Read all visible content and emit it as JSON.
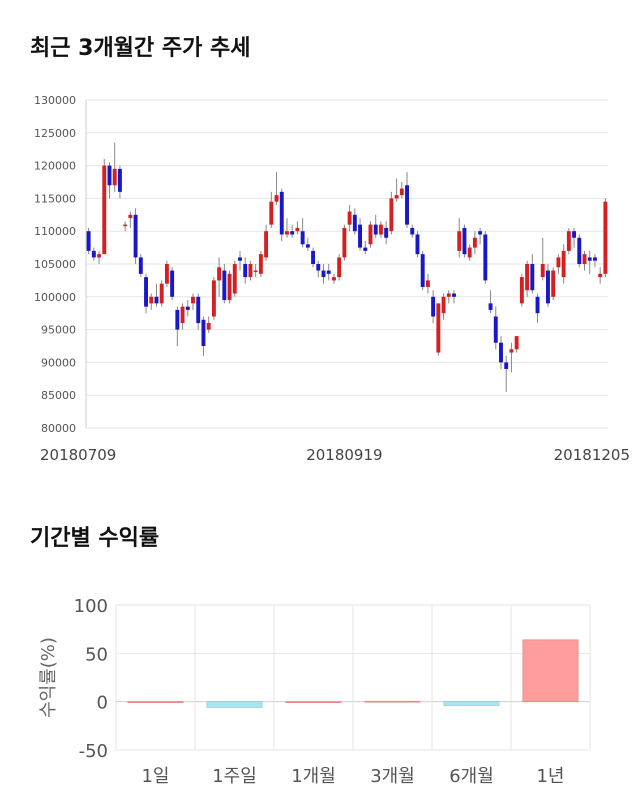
{
  "sections": {
    "stock_title": "최근 3개월간 주가 추세",
    "returns_title": "기간별 수익률"
  },
  "colors": {
    "up": "#d42020",
    "down": "#1818c8",
    "return_pos": "#ff9c9c",
    "return_neg": "#a8e4f0",
    "grid": "#e6e6e6"
  },
  "chart_data": [
    {
      "type": "candlestick",
      "ylim": [
        80000,
        130000
      ],
      "yticks": [
        80000,
        85000,
        90000,
        95000,
        100000,
        105000,
        110000,
        115000,
        120000,
        125000,
        130000
      ],
      "xticks": [
        {
          "index": 0,
          "label": "20180709"
        },
        {
          "index": 49,
          "label": "20180919"
        },
        {
          "index": 100,
          "label": "20181205"
        }
      ],
      "candles": [
        [
          110000,
          110500,
          106500,
          107000
        ],
        [
          107000,
          107500,
          105500,
          106000
        ],
        [
          106000,
          107000,
          105000,
          106500
        ],
        [
          106500,
          121000,
          106500,
          120000
        ],
        [
          120000,
          120500,
          115000,
          117000
        ],
        [
          117000,
          123500,
          116000,
          119500
        ],
        [
          119500,
          120000,
          115000,
          116000
        ],
        [
          111000,
          111500,
          110000,
          111000
        ],
        [
          112000,
          113000,
          110500,
          112500
        ],
        [
          112500,
          113500,
          105000,
          106000
        ],
        [
          106000,
          106500,
          103000,
          103500
        ],
        [
          103000,
          103500,
          97500,
          98500
        ],
        [
          99000,
          100500,
          98000,
          100000
        ],
        [
          100000,
          102000,
          98500,
          99000
        ],
        [
          99000,
          102500,
          98500,
          102000
        ],
        [
          102000,
          105500,
          101500,
          105000
        ],
        [
          104000,
          104500,
          99500,
          100000
        ],
        [
          98000,
          98500,
          92500,
          95000
        ],
        [
          96000,
          99000,
          95000,
          98500
        ],
        [
          98500,
          99500,
          97000,
          98000
        ],
        [
          99000,
          100500,
          98000,
          100000
        ],
        [
          100000,
          100500,
          95000,
          96000
        ],
        [
          96500,
          97000,
          91000,
          92500
        ],
        [
          95000,
          97000,
          94500,
          96000
        ],
        [
          97000,
          103000,
          96500,
          102500
        ],
        [
          102500,
          106000,
          100000,
          104500
        ],
        [
          104000,
          105000,
          99000,
          99500
        ],
        [
          99500,
          104000,
          99000,
          103500
        ],
        [
          100500,
          105500,
          100000,
          105000
        ],
        [
          106000,
          107000,
          104000,
          105500
        ],
        [
          105000,
          106000,
          102000,
          103000
        ],
        [
          103000,
          105500,
          102500,
          105000
        ],
        [
          104000,
          105000,
          103000,
          104000
        ],
        [
          103500,
          107000,
          103000,
          106500
        ],
        [
          106000,
          111000,
          105500,
          110000
        ],
        [
          111000,
          116000,
          110500,
          114500
        ],
        [
          114500,
          119000,
          114000,
          115500
        ],
        [
          116000,
          116500,
          108500,
          109500
        ],
        [
          109500,
          112000,
          109000,
          110000
        ],
        [
          110000,
          111000,
          109000,
          109500
        ],
        [
          110000,
          111500,
          109500,
          110500
        ],
        [
          110000,
          112000,
          107500,
          108000
        ],
        [
          108000,
          109000,
          107000,
          107500
        ],
        [
          107000,
          107500,
          104500,
          105000
        ],
        [
          105000,
          105500,
          103000,
          104000
        ],
        [
          104000,
          105000,
          102000,
          103000
        ],
        [
          104000,
          105000,
          102500,
          103500
        ],
        [
          102500,
          103500,
          102000,
          103000
        ],
        [
          103000,
          106500,
          102500,
          106000
        ],
        [
          106000,
          111000,
          105500,
          110500
        ],
        [
          111000,
          114000,
          110000,
          113000
        ],
        [
          112500,
          113500,
          109500,
          110000
        ],
        [
          111000,
          112000,
          107000,
          107500
        ],
        [
          107500,
          108500,
          106500,
          107000
        ],
        [
          108000,
          111500,
          107500,
          111000
        ],
        [
          111000,
          112500,
          109000,
          109500
        ],
        [
          109500,
          111500,
          109000,
          111000
        ],
        [
          110500,
          111500,
          108000,
          109000
        ],
        [
          110000,
          116000,
          109500,
          115000
        ],
        [
          115000,
          118000,
          114500,
          115500
        ],
        [
          115500,
          117500,
          115000,
          116500
        ],
        [
          117000,
          119000,
          110500,
          111000
        ],
        [
          110500,
          111000,
          109000,
          109500
        ],
        [
          109500,
          110000,
          106000,
          106500
        ],
        [
          106500,
          107000,
          101000,
          101500
        ],
        [
          101500,
          103500,
          100500,
          102500
        ],
        [
          100000,
          101000,
          96000,
          97000
        ],
        [
          91500,
          99000,
          91000,
          99000
        ],
        [
          97500,
          100500,
          96500,
          100000
        ],
        [
          100000,
          101000,
          99000,
          100500
        ],
        [
          100500,
          101000,
          99000,
          100000
        ],
        [
          107000,
          112000,
          106000,
          110000
        ],
        [
          110500,
          111000,
          106000,
          106500
        ],
        [
          106000,
          108000,
          105500,
          107500
        ],
        [
          107500,
          110000,
          106500,
          109000
        ],
        [
          110000,
          110500,
          108000,
          109500
        ],
        [
          109500,
          110000,
          102000,
          102500
        ],
        [
          99000,
          101000,
          97500,
          98000
        ],
        [
          97000,
          98500,
          92000,
          93000
        ],
        [
          93000,
          94000,
          89000,
          90000
        ],
        [
          90000,
          91000,
          85500,
          89000
        ],
        [
          91500,
          93000,
          88500,
          92000
        ],
        [
          92000,
          94000,
          91500,
          94000
        ],
        [
          99000,
          103500,
          98500,
          103000
        ],
        [
          101000,
          105500,
          100000,
          105000
        ],
        [
          105000,
          106500,
          100500,
          101000
        ],
        [
          100000,
          100500,
          96000,
          97500
        ],
        [
          103000,
          109000,
          102500,
          105000
        ],
        [
          104000,
          105000,
          98500,
          99000
        ],
        [
          100000,
          104500,
          99500,
          104000
        ],
        [
          104500,
          106500,
          103500,
          106000
        ],
        [
          103000,
          108000,
          102000,
          107000
        ],
        [
          107000,
          110500,
          106500,
          110000
        ],
        [
          110000,
          110500,
          107500,
          109000
        ],
        [
          109000,
          109500,
          104500,
          105000
        ],
        [
          105000,
          107000,
          104000,
          106500
        ],
        [
          106000,
          107000,
          103500,
          105500
        ],
        [
          106000,
          106500,
          104500,
          105500
        ],
        [
          103000,
          104500,
          102000,
          103500
        ],
        [
          103500,
          115000,
          103000,
          114500
        ]
      ]
    },
    {
      "type": "bar",
      "ylabel": "수익률(%)",
      "ylim": [
        -50,
        100
      ],
      "yticks": [
        -50,
        0,
        50,
        100
      ],
      "categories": [
        "1일",
        "1주일",
        "1개월",
        "3개월",
        "6개월",
        "1년"
      ],
      "values": [
        0,
        -6,
        0,
        0.5,
        -4,
        64
      ]
    }
  ]
}
